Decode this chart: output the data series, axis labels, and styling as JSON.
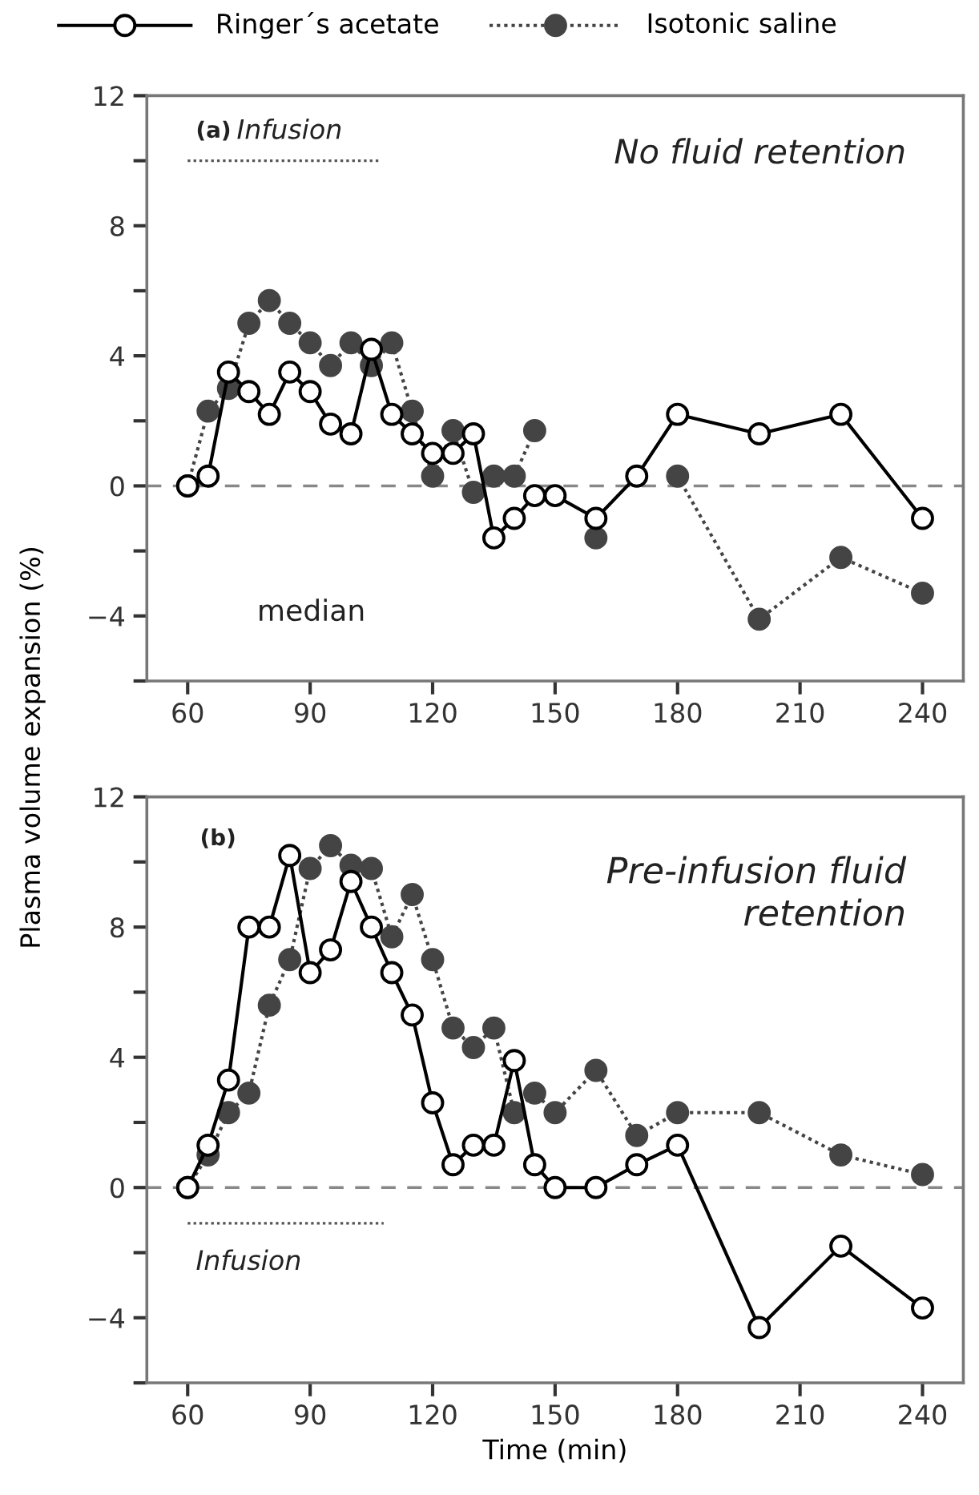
{
  "chart_data": [
    {
      "type": "line",
      "ylabel": "Plasma volume expansion (%)",
      "xlim": [
        50,
        250
      ],
      "xticks": [
        60,
        90,
        120,
        150,
        180,
        210,
        240
      ],
      "ylim": [
        -6,
        12
      ],
      "yticks": [
        {
          "value": -6,
          "label": null
        },
        -4,
        {
          "value": -2,
          "label": null
        },
        0,
        {
          "value": 2,
          "label": null
        },
        4,
        {
          "value": 6,
          "label": null
        },
        8,
        {
          "value": 10,
          "label": null
        },
        12
      ],
      "grid": false,
      "legend": "top",
      "marker": "circle",
      "annotations": [
        "(a)",
        "Infusion",
        "No fluid retention",
        "median"
      ],
      "ref_lines": [
        {
          "axis": "y",
          "value": 0,
          "label": null,
          "color": "#888888",
          "line_style": "dashed"
        }
      ],
      "series": [
        {
          "name": "Ringer´s acetate",
          "color": "#000000",
          "line_style": "solid",
          "x": [
            60,
            65,
            70,
            75,
            80,
            85,
            90,
            95,
            100,
            105,
            110,
            115,
            120,
            125,
            130,
            135,
            140,
            145,
            150,
            160,
            170,
            180,
            200,
            220,
            240
          ],
          "values": [
            0,
            0.3,
            3.5,
            2.9,
            2.2,
            3.5,
            2.9,
            1.9,
            1.6,
            4.2,
            2.2,
            1.6,
            1.0,
            1.0,
            1.6,
            -1.6,
            -1.0,
            -0.3,
            -0.3,
            -1.0,
            0.3,
            2.2,
            1.6,
            2.2,
            -1.0
          ]
        },
        {
          "name": "Isotonic saline",
          "color": "#444444",
          "line_style": "dotted",
          "x": [
            60,
            65,
            70,
            75,
            80,
            85,
            90,
            95,
            100,
            105,
            110,
            115,
            120,
            125,
            130,
            135,
            140,
            145,
            150,
            160,
            170,
            180,
            200,
            220,
            240
          ],
          "values": [
            0,
            2.3,
            3.0,
            5.0,
            5.7,
            5.0,
            4.4,
            3.7,
            4.4,
            3.7,
            4.4,
            2.3,
            0.3,
            1.7,
            -0.2,
            0.3,
            0.3,
            1.7,
            null,
            -1.6,
            null,
            0.3,
            -4.1,
            -2.2,
            -3.3
          ]
        },
        {
          "color": "#555555",
          "line_style": "dotted",
          "marker": "none",
          "x": [
            60,
            107
          ],
          "values": [
            10,
            10
          ]
        }
      ]
    },
    {
      "type": "line",
      "xlabel": "Time (min)",
      "xlim": [
        50,
        250
      ],
      "xticks": [
        60,
        90,
        120,
        150,
        180,
        210,
        240
      ],
      "ylim": [
        -6,
        12
      ],
      "yticks": [
        {
          "value": -6,
          "label": null
        },
        -4,
        {
          "value": -2,
          "label": null
        },
        0,
        {
          "value": 2,
          "label": null
        },
        4,
        {
          "value": 6,
          "label": null
        },
        8,
        {
          "value": 10,
          "label": null
        },
        12
      ],
      "grid": false,
      "marker": "circle",
      "annotations": [
        "(b)",
        "Pre-infusion fluid\nretention",
        "Infusion"
      ],
      "ref_lines": [
        {
          "axis": "y",
          "value": 0,
          "label": null,
          "color": "#888888",
          "line_style": "dashed"
        }
      ],
      "series": [
        {
          "color": "#000000",
          "line_style": "solid",
          "x": [
            60,
            65,
            70,
            75,
            80,
            85,
            90,
            95,
            100,
            105,
            110,
            115,
            120,
            125,
            130,
            135,
            140,
            145,
            150,
            160,
            170,
            180,
            200,
            220,
            240
          ],
          "values": [
            0,
            1.3,
            3.3,
            8.0,
            8.0,
            10.2,
            6.6,
            7.3,
            9.4,
            8.0,
            6.6,
            5.3,
            2.6,
            0.7,
            1.3,
            1.3,
            3.9,
            0.7,
            0,
            0,
            0.7,
            1.3,
            -4.3,
            -1.8,
            -3.7
          ]
        },
        {
          "color": "#444444",
          "line_style": "dotted",
          "x": [
            60,
            65,
            70,
            75,
            80,
            85,
            90,
            95,
            100,
            105,
            110,
            115,
            120,
            125,
            130,
            135,
            140,
            145,
            150,
            160,
            170,
            180,
            200,
            220,
            240
          ],
          "values": [
            0,
            1.0,
            2.3,
            2.9,
            5.6,
            7.0,
            9.8,
            10.5,
            9.9,
            9.8,
            7.7,
            9.0,
            7.0,
            4.9,
            4.3,
            4.9,
            2.3,
            2.9,
            2.3,
            3.6,
            1.6,
            2.3,
            2.3,
            1.0,
            0.4
          ]
        },
        {
          "color": "#555555",
          "line_style": "dotted",
          "marker": "none",
          "x": [
            60,
            108
          ],
          "values": [
            -1.1,
            -1.1
          ]
        }
      ]
    }
  ]
}
